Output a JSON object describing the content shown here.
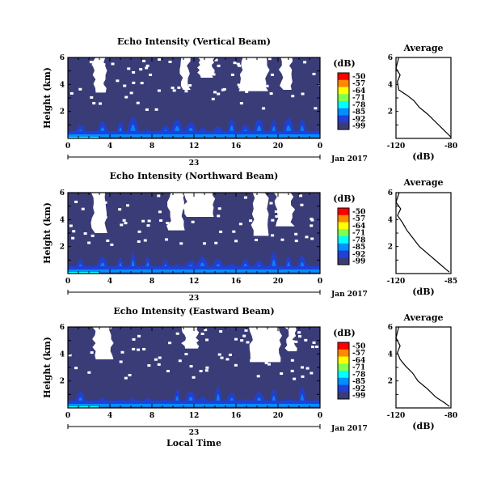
{
  "chart_data": [
    {
      "type": "heatmap",
      "title": "Echo Intensity (Vertical Beam)",
      "ylabel": "Height (km)",
      "yticks": [
        "2",
        "4",
        "6"
      ],
      "xticks": [
        "0",
        "4",
        "8",
        "12",
        "16",
        "20",
        "0"
      ],
      "date_label": "23",
      "month_label": "Jan 2017",
      "colorbar": {
        "unit": "(dB)",
        "levels": [
          -50,
          -57,
          -64,
          -71,
          -78,
          -85,
          -92,
          -99
        ]
      },
      "average": {
        "title": "Average",
        "xlabel": "(dB)",
        "xticks": [
          "-120",
          "-80"
        ],
        "yticks": [
          "2",
          "4",
          "6"
        ],
        "profile": [
          [
            -118,
            6.0
          ],
          [
            -120,
            5.2
          ],
          [
            -117,
            4.7
          ],
          [
            -119,
            4.2
          ],
          [
            -118,
            3.6
          ],
          [
            -112,
            3.2
          ],
          [
            -107,
            2.8
          ],
          [
            -103,
            2.3
          ],
          [
            -97,
            1.8
          ],
          [
            -91,
            1.2
          ],
          [
            -86,
            0.7
          ],
          [
            -82,
            0.3
          ],
          [
            -80,
            0.1
          ]
        ]
      }
    },
    {
      "type": "heatmap",
      "title": "Echo Intensity (Northward Beam)",
      "ylabel": "Height (km)",
      "yticks": [
        "2",
        "4",
        "6"
      ],
      "xticks": [
        "0",
        "4",
        "8",
        "12",
        "16",
        "20",
        "0"
      ],
      "date_label": "23",
      "month_label": "Jan 2017",
      "colorbar": {
        "unit": "(dB)",
        "levels": [
          -50,
          -57,
          -64,
          -71,
          -78,
          -85,
          -92,
          -99
        ]
      },
      "average": {
        "title": "Average",
        "xlabel": "(dB)",
        "xticks": [
          "-120",
          "-85"
        ],
        "yticks": [
          "2",
          "4",
          "6"
        ],
        "profile": [
          [
            -118,
            6.0
          ],
          [
            -120,
            5.3
          ],
          [
            -117,
            4.8
          ],
          [
            -119,
            4.3
          ],
          [
            -116,
            3.8
          ],
          [
            -113,
            3.2
          ],
          [
            -109,
            2.6
          ],
          [
            -105,
            2.0
          ],
          [
            -99,
            1.4
          ],
          [
            -94,
            0.9
          ],
          [
            -89,
            0.4
          ],
          [
            -86,
            0.1
          ]
        ]
      }
    },
    {
      "type": "heatmap",
      "title": "Echo Intensity (Eastward Beam)",
      "ylabel": "Height (km)",
      "yticks": [
        "2",
        "4",
        "6"
      ],
      "xticks": [
        "0",
        "4",
        "8",
        "12",
        "16",
        "20",
        "0"
      ],
      "date_label": "23",
      "month_label": "Jan 2017",
      "xlabel": "Local Time",
      "colorbar": {
        "unit": "(dB)",
        "levels": [
          -50,
          -57,
          -64,
          -71,
          -78,
          -85,
          -92,
          -99
        ]
      },
      "average": {
        "title": "Average",
        "xlabel": "(dB)",
        "xticks": [
          "-120",
          "-80"
        ],
        "yticks": [
          "2",
          "4",
          "6"
        ],
        "profile": [
          [
            -118,
            6.0
          ],
          [
            -120,
            5.2
          ],
          [
            -117,
            4.6
          ],
          [
            -119,
            4.1
          ],
          [
            -117,
            3.6
          ],
          [
            -113,
            3.1
          ],
          [
            -108,
            2.6
          ],
          [
            -104,
            2.0
          ],
          [
            -97,
            1.4
          ],
          [
            -91,
            0.8
          ],
          [
            -85,
            0.4
          ],
          [
            -81,
            0.1
          ]
        ]
      }
    }
  ],
  "colors": {
    "background": "#3a3c78",
    "colormap": [
      "#ff0000",
      "#ff8a00",
      "#ffff00",
      "#80ff50",
      "#00ffff",
      "#0090ff",
      "#2040d8",
      "#3a3c78"
    ]
  }
}
